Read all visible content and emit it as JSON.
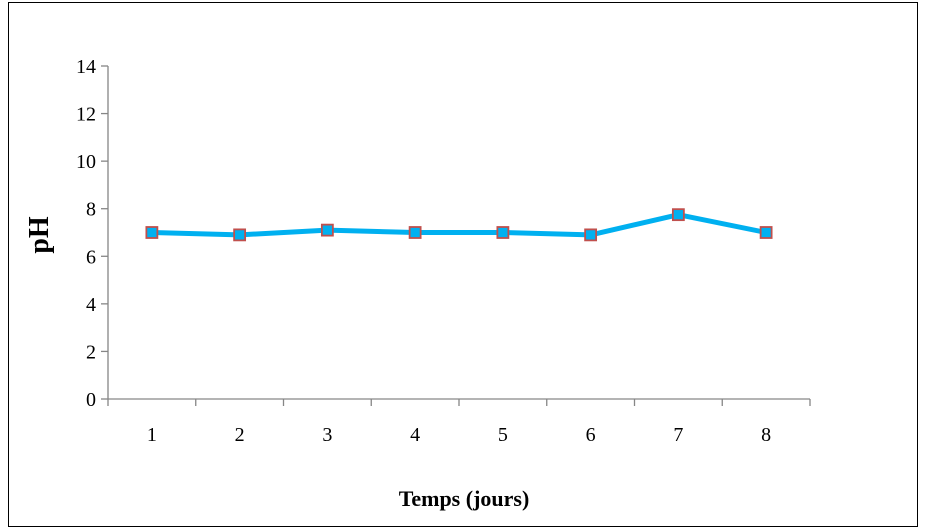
{
  "chart_data": {
    "type": "line",
    "categories": [
      "1",
      "2",
      "3",
      "4",
      "5",
      "6",
      "7",
      "8"
    ],
    "series": [
      {
        "values": [
          7.0,
          6.9,
          7.1,
          7.0,
          7.0,
          6.9,
          7.75,
          7.0
        ]
      }
    ],
    "xlabel": "Temps (jours)",
    "ylabel": "pH",
    "ylim": [
      0,
      14
    ],
    "yticks": [
      0,
      2,
      4,
      6,
      8,
      10,
      12,
      14
    ],
    "grid": false,
    "legend": "none",
    "colors": {
      "line": "#00B0F0",
      "marker_fill": "#00B0F0",
      "marker_stroke": "#C0504D",
      "axis": "#868686"
    }
  }
}
